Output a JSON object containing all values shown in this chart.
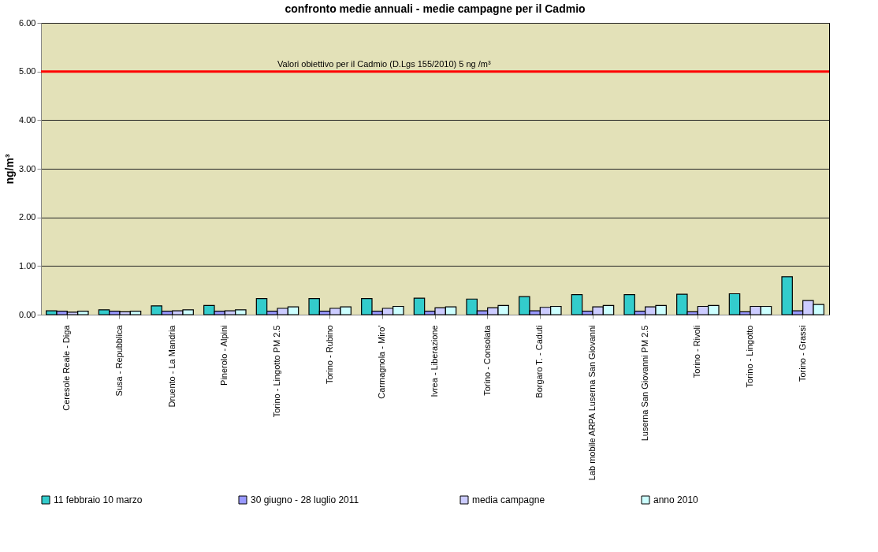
{
  "chart_data": {
    "type": "bar",
    "title": "confronto medie annuali - medie campagne per il Cadmio",
    "ylabel": "ng/m³",
    "categories": [
      "Ceresole Reale - Diga",
      "Susa - Repubblica",
      "Druento - La Mandria",
      "Pinerolo - Alpini",
      "Torino - Lingotto PM 2.5",
      "Torino - Rubino",
      "Carmagnola - Miro'",
      "Ivrea - Liberazione",
      "Torino - Consolata",
      "Borgaro T. - Caduti",
      "Lab mobile ARPA Luserna San Giovanni",
      "Luserna San Giovanni PM 2.5",
      "Torino - Rivoli",
      "Torino - Lingotto",
      "Torino - Grassi"
    ],
    "series": [
      {
        "name": "11 febbraio 10 marzo",
        "color": "#33cccc",
        "values": [
          0.08,
          0.1,
          0.18,
          0.19,
          0.33,
          0.33,
          0.33,
          0.34,
          0.32,
          0.37,
          0.41,
          0.41,
          0.42,
          0.43,
          0.78
        ]
      },
      {
        "name": "30 giugno -  28 luglio  2011",
        "color": "#9999ff",
        "values": [
          0.07,
          0.07,
          0.07,
          0.07,
          0.07,
          0.07,
          0.07,
          0.07,
          0.08,
          0.08,
          0.07,
          0.07,
          0.06,
          0.06,
          0.08
        ]
      },
      {
        "name": "media campagne",
        "color": "#ccccff",
        "values": [
          0.05,
          0.06,
          0.08,
          0.08,
          0.13,
          0.13,
          0.13,
          0.14,
          0.14,
          0.15,
          0.16,
          0.16,
          0.17,
          0.17,
          0.29
        ]
      },
      {
        "name": "anno 2010",
        "color": "#ccffff",
        "values": [
          0.07,
          0.07,
          0.1,
          0.1,
          0.16,
          0.16,
          0.17,
          0.16,
          0.19,
          0.17,
          0.19,
          0.19,
          0.19,
          0.17,
          0.21
        ]
      }
    ],
    "ylim": [
      0,
      6
    ],
    "yticks": [
      {
        "value": 0,
        "label": "0.00"
      },
      {
        "value": 1,
        "label": "1.00"
      },
      {
        "value": 2,
        "label": "2.00"
      },
      {
        "value": 3,
        "label": "3.00"
      },
      {
        "value": 4,
        "label": "4.00"
      },
      {
        "value": 5,
        "label": "5.00"
      },
      {
        "value": 6,
        "label": "6.00"
      }
    ],
    "ref_lines": [
      {
        "axis": "y",
        "value": 5,
        "label": "Valori obiettivo per il Cadmio (D.Lgs 155/2010) 5 ng /m³",
        "color": "#ff0000"
      }
    ],
    "grid": "y",
    "legend": "bottom"
  }
}
